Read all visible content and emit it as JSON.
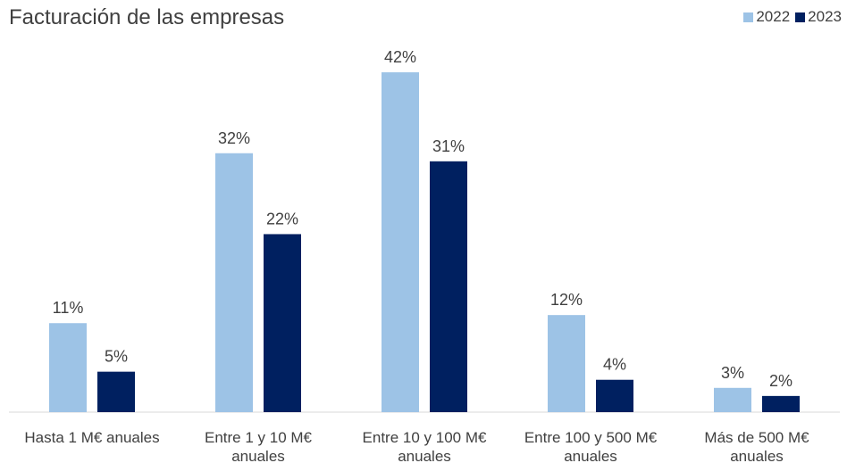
{
  "chart_data": {
    "type": "bar",
    "title": "Facturación de las empresas",
    "categories": [
      [
        "Hasta 1 M€ anuales"
      ],
      [
        "Entre 1 y 10 M€",
        "anuales"
      ],
      [
        "Entre 10 y 100 M€",
        "anuales"
      ],
      [
        "Entre 100 y 500 M€",
        "anuales"
      ],
      [
        "Más de 500 M€",
        "anuales"
      ]
    ],
    "series": [
      {
        "name": "2022",
        "color": "#9dc3e6",
        "values": [
          11,
          32,
          42,
          12,
          3
        ],
        "labels": [
          "11%",
          "32%",
          "42%",
          "12%",
          "3%"
        ]
      },
      {
        "name": "2023",
        "color": "#002060",
        "values": [
          5,
          22,
          31,
          4,
          2
        ],
        "labels": [
          "5%",
          "22%",
          "31%",
          "4%",
          "2%"
        ]
      }
    ],
    "xlabel": "",
    "ylabel": "",
    "ylim": [
      0,
      45
    ],
    "grid": false,
    "legend_position": "top-right"
  }
}
